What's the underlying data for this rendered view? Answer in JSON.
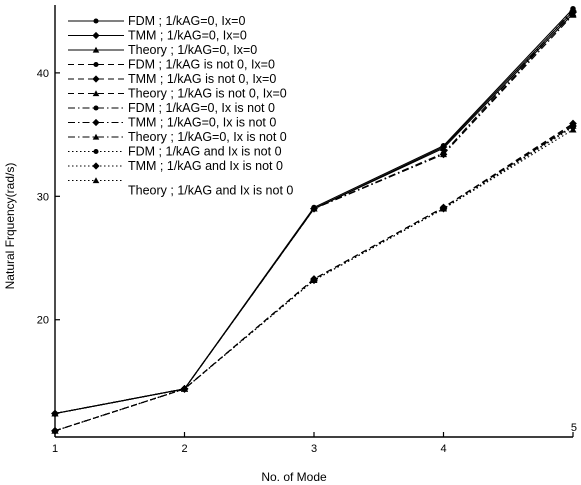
{
  "chart_data": {
    "type": "line",
    "xlabel": "No. of Mode",
    "ylabel": "Natural Frquency(rad/s)",
    "x": [
      1,
      2,
      3,
      4,
      5
    ],
    "xlim": [
      1,
      5
    ],
    "ylim": [
      10.5,
      45.5
    ],
    "x_ticks": [
      1,
      2,
      3,
      4,
      5
    ],
    "y_ticks": [
      20,
      30,
      40
    ],
    "grid": false,
    "legend_position": "top-left",
    "series": [
      {
        "name": "FDM ; 1/kAG=0, Ix=0",
        "values": [
          12.4,
          14.4,
          29.1,
          34.1,
          45.2
        ],
        "style": "solid",
        "marker": "circle",
        "color": "#000000"
      },
      {
        "name": "TMM ; 1/kAG=0, Ix=0",
        "values": [
          12.4,
          14.4,
          29.0,
          34.0,
          45.0
        ],
        "style": "solid",
        "marker": "diamond",
        "color": "#000000"
      },
      {
        "name": "Theory ; 1/kAG=0, Ix=0",
        "values": [
          12.4,
          14.4,
          29.0,
          33.9,
          44.8
        ],
        "style": "solid",
        "marker": "triangle",
        "color": "#000000"
      },
      {
        "name": "FDM ; 1/kAG is not 0, Ix=0",
        "values": [
          11.0,
          14.4,
          23.3,
          29.1,
          35.8
        ],
        "style": "dashed",
        "marker": "circle",
        "color": "#000000"
      },
      {
        "name": "TMM ; 1/kAG is not 0, Ix=0",
        "values": [
          11.0,
          14.4,
          23.3,
          29.1,
          35.9
        ],
        "style": "dashed",
        "marker": "diamond",
        "color": "#000000"
      },
      {
        "name": "Theory ; 1/kAG is not 0, Ix=0",
        "values": [
          11.0,
          14.4,
          23.3,
          29.1,
          35.7
        ],
        "style": "dashed",
        "marker": "triangle",
        "color": "#000000"
      },
      {
        "name": "FDM ; 1/kAG=0, Ix is not 0",
        "values": [
          12.4,
          14.4,
          29.0,
          33.5,
          45.1
        ],
        "style": "dashdot",
        "marker": "circle",
        "color": "#000000"
      },
      {
        "name": "TMM ; 1/kAG=0, Ix is not 0",
        "values": [
          12.4,
          14.4,
          29.0,
          33.4,
          44.9
        ],
        "style": "dashdot",
        "marker": "diamond",
        "color": "#000000"
      },
      {
        "name": "Theory ; 1/kAG=0, Ix is not 0",
        "values": [
          12.4,
          14.4,
          29.0,
          33.4,
          44.7
        ],
        "style": "dashdot",
        "marker": "triangle",
        "color": "#000000"
      },
      {
        "name": "FDM ; 1/kAG and Ix is not 0",
        "values": [
          11.0,
          14.4,
          23.2,
          29.0,
          35.6
        ],
        "style": "dotted",
        "marker": "circle",
        "color": "#000000"
      },
      {
        "name": "TMM ; 1/kAG and Ix is not 0",
        "values": [
          11.0,
          14.4,
          23.2,
          29.0,
          35.7
        ],
        "style": "dotted",
        "marker": "diamond",
        "color": "#000000"
      },
      {
        "name": "Theory ; 1/kAG and Ix is not 0",
        "values": [
          11.0,
          14.4,
          23.2,
          29.0,
          35.4
        ],
        "style": "dotted",
        "marker": "triangle",
        "color": "#000000"
      }
    ]
  }
}
